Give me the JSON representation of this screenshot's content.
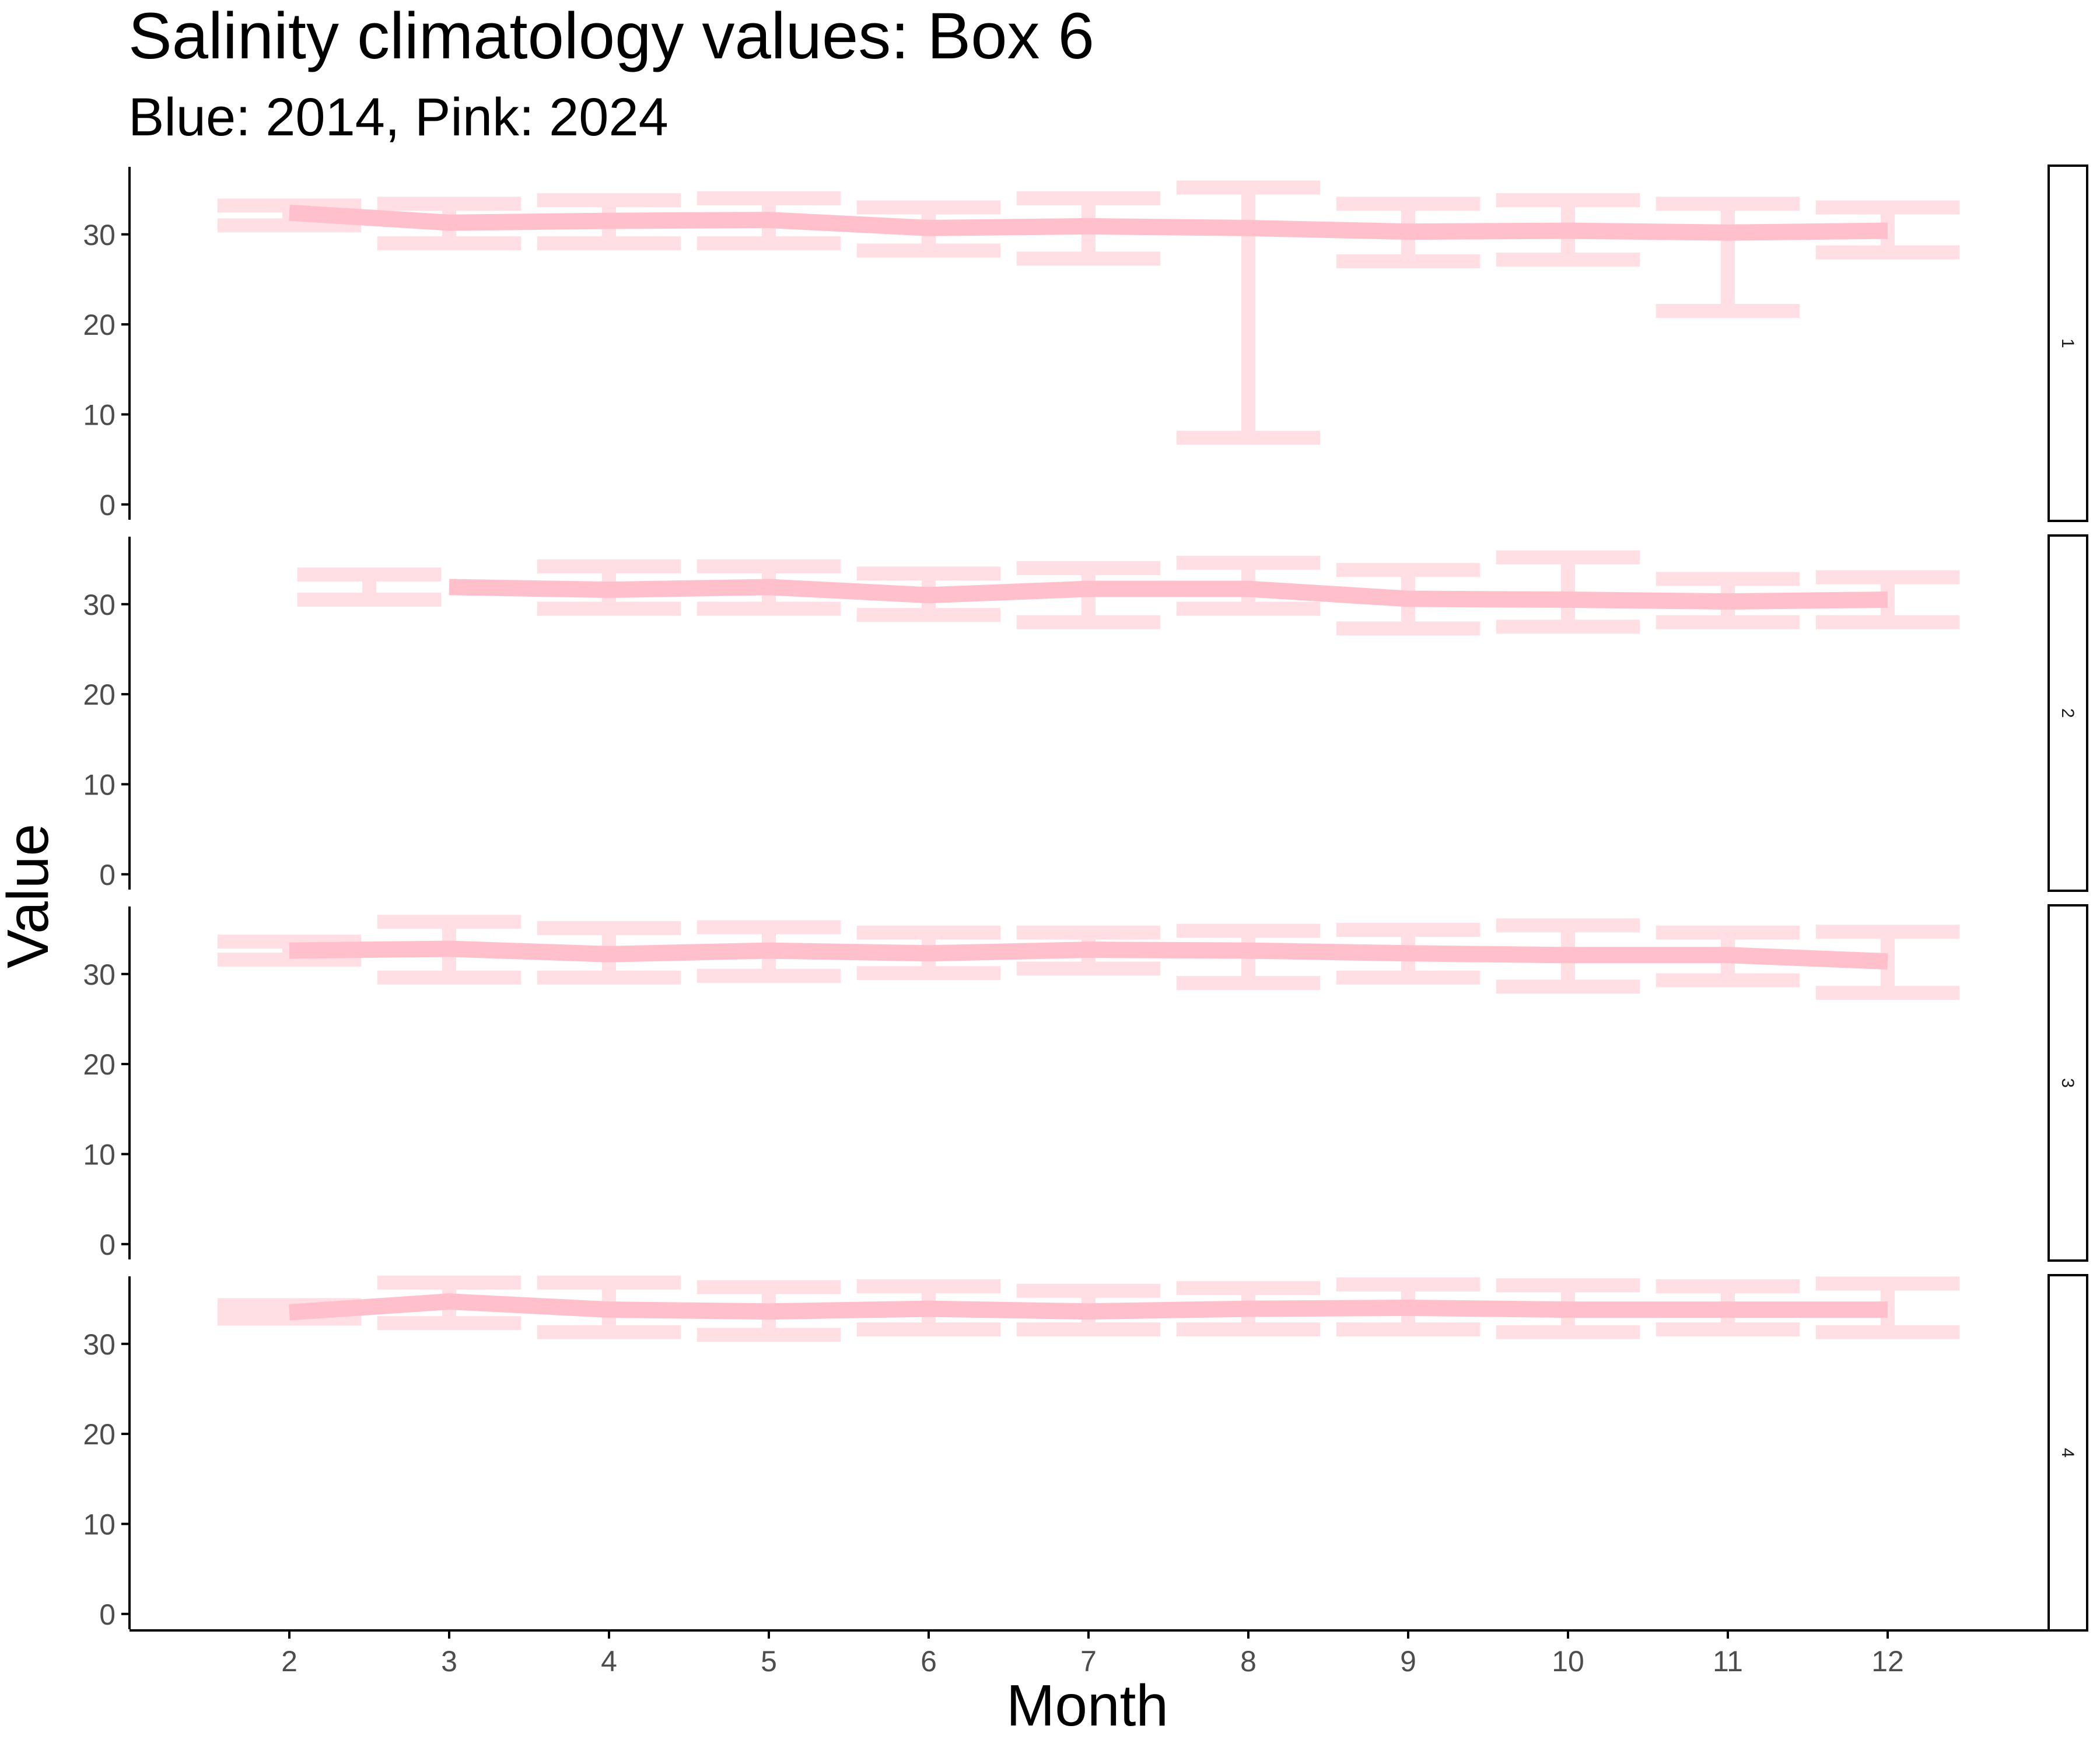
{
  "chart_data": {
    "type": "line",
    "title": "Salinity climatology values: Box 6",
    "subtitle": "Blue: 2014, Pink: 2024",
    "xlabel": "Month",
    "ylabel": "Value",
    "x_ticks": [
      2,
      3,
      4,
      5,
      6,
      7,
      8,
      9,
      10,
      11,
      12
    ],
    "y_ticks": [
      0,
      10,
      20,
      30
    ],
    "ylim": [
      -1.7,
      37.5
    ],
    "xlim": [
      1,
      13
    ],
    "grid": false,
    "colors": {
      "line_2024": "#ffc0cb",
      "errorbar_2024": "#ffc0cb",
      "axis": "#000000",
      "tick_label": "#4d4d4d",
      "background": "#ffffff"
    },
    "panels": [
      {
        "strip_label": "1",
        "line_2024": [
          [
            2,
            32.4
          ],
          [
            3,
            31.3
          ],
          [
            4,
            31.5
          ],
          [
            5,
            31.6
          ],
          [
            6,
            30.7
          ],
          [
            7,
            30.9
          ],
          [
            8,
            30.7
          ],
          [
            9,
            30.3
          ],
          [
            10,
            30.4
          ],
          [
            11,
            30.2
          ],
          [
            12,
            30.4
          ]
        ],
        "errorbars_2024": [
          {
            "x": 2,
            "ymin": 31.0,
            "ymax": 33.2
          },
          {
            "x": 3,
            "ymin": 29.0,
            "ymax": 33.4
          },
          {
            "x": 4,
            "ymin": 29.0,
            "ymax": 33.8
          },
          {
            "x": 5,
            "ymin": 29.0,
            "ymax": 34.0
          },
          {
            "x": 6,
            "ymin": 28.2,
            "ymax": 33.0
          },
          {
            "x": 7,
            "ymin": 27.3,
            "ymax": 34.0
          },
          {
            "x": 8,
            "ymin": 7.4,
            "ymax": 35.2
          },
          {
            "x": 9,
            "ymin": 27.0,
            "ymax": 33.4
          },
          {
            "x": 10,
            "ymin": 27.2,
            "ymax": 33.8
          },
          {
            "x": 11,
            "ymin": 21.5,
            "ymax": 33.4
          },
          {
            "x": 12,
            "ymin": 28.0,
            "ymax": 33.0
          }
        ]
      },
      {
        "strip_label": "2",
        "line_2024": [
          [
            3,
            31.9
          ],
          [
            4,
            31.6
          ],
          [
            5,
            31.9
          ],
          [
            6,
            31.0
          ],
          [
            7,
            31.7
          ],
          [
            8,
            31.7
          ],
          [
            9,
            30.6
          ],
          [
            10,
            30.5
          ],
          [
            11,
            30.3
          ],
          [
            12,
            30.5
          ]
        ],
        "errorbars_2024": [
          {
            "x": 2.5,
            "ymin": 30.5,
            "ymax": 33.3
          },
          {
            "x": 4,
            "ymin": 29.5,
            "ymax": 34.2
          },
          {
            "x": 5,
            "ymin": 29.5,
            "ymax": 34.2
          },
          {
            "x": 6,
            "ymin": 28.8,
            "ymax": 33.4
          },
          {
            "x": 7,
            "ymin": 28.0,
            "ymax": 34.0
          },
          {
            "x": 8,
            "ymin": 29.5,
            "ymax": 34.6
          },
          {
            "x": 9,
            "ymin": 27.3,
            "ymax": 33.8
          },
          {
            "x": 10,
            "ymin": 27.5,
            "ymax": 35.2
          },
          {
            "x": 11,
            "ymin": 28.0,
            "ymax": 32.8
          },
          {
            "x": 12,
            "ymin": 28.0,
            "ymax": 33.0
          }
        ]
      },
      {
        "strip_label": "3",
        "line_2024": [
          [
            2,
            32.6
          ],
          [
            3,
            32.8
          ],
          [
            4,
            32.2
          ],
          [
            5,
            32.6
          ],
          [
            6,
            32.3
          ],
          [
            7,
            32.7
          ],
          [
            8,
            32.6
          ],
          [
            9,
            32.3
          ],
          [
            10,
            32.1
          ],
          [
            11,
            32.1
          ],
          [
            12,
            31.4
          ]
        ],
        "errorbars_2024": [
          {
            "x": 2,
            "ymin": 31.6,
            "ymax": 33.6
          },
          {
            "x": 3,
            "ymin": 29.6,
            "ymax": 35.8
          },
          {
            "x": 4,
            "ymin": 29.6,
            "ymax": 35.1
          },
          {
            "x": 5,
            "ymin": 29.8,
            "ymax": 35.2
          },
          {
            "x": 6,
            "ymin": 30.1,
            "ymax": 34.6
          },
          {
            "x": 7,
            "ymin": 30.6,
            "ymax": 34.6
          },
          {
            "x": 8,
            "ymin": 29.0,
            "ymax": 34.8
          },
          {
            "x": 9,
            "ymin": 29.6,
            "ymax": 34.9
          },
          {
            "x": 10,
            "ymin": 28.6,
            "ymax": 35.4
          },
          {
            "x": 11,
            "ymin": 29.3,
            "ymax": 34.6
          },
          {
            "x": 12,
            "ymin": 27.9,
            "ymax": 34.7
          }
        ]
      },
      {
        "strip_label": "4",
        "line_2024": [
          [
            2,
            33.5
          ],
          [
            3,
            34.7
          ],
          [
            4,
            33.8
          ],
          [
            5,
            33.6
          ],
          [
            6,
            33.9
          ],
          [
            7,
            33.6
          ],
          [
            8,
            33.9
          ],
          [
            9,
            34.0
          ],
          [
            10,
            33.8
          ],
          [
            11,
            33.8
          ],
          [
            12,
            33.8
          ]
        ],
        "errorbars_2024": [
          {
            "x": 2,
            "ymin": 32.8,
            "ymax": 34.3
          },
          {
            "x": 3,
            "ymin": 32.3,
            "ymax": 36.8
          },
          {
            "x": 4,
            "ymin": 31.3,
            "ymax": 36.8
          },
          {
            "x": 5,
            "ymin": 31.0,
            "ymax": 36.3
          },
          {
            "x": 6,
            "ymin": 31.6,
            "ymax": 36.4
          },
          {
            "x": 7,
            "ymin": 31.6,
            "ymax": 35.9
          },
          {
            "x": 8,
            "ymin": 31.6,
            "ymax": 36.2
          },
          {
            "x": 9,
            "ymin": 31.6,
            "ymax": 36.6
          },
          {
            "x": 10,
            "ymin": 31.3,
            "ymax": 36.5
          },
          {
            "x": 11,
            "ymin": 31.6,
            "ymax": 36.4
          },
          {
            "x": 12,
            "ymin": 31.3,
            "ymax": 36.7
          }
        ]
      }
    ]
  }
}
